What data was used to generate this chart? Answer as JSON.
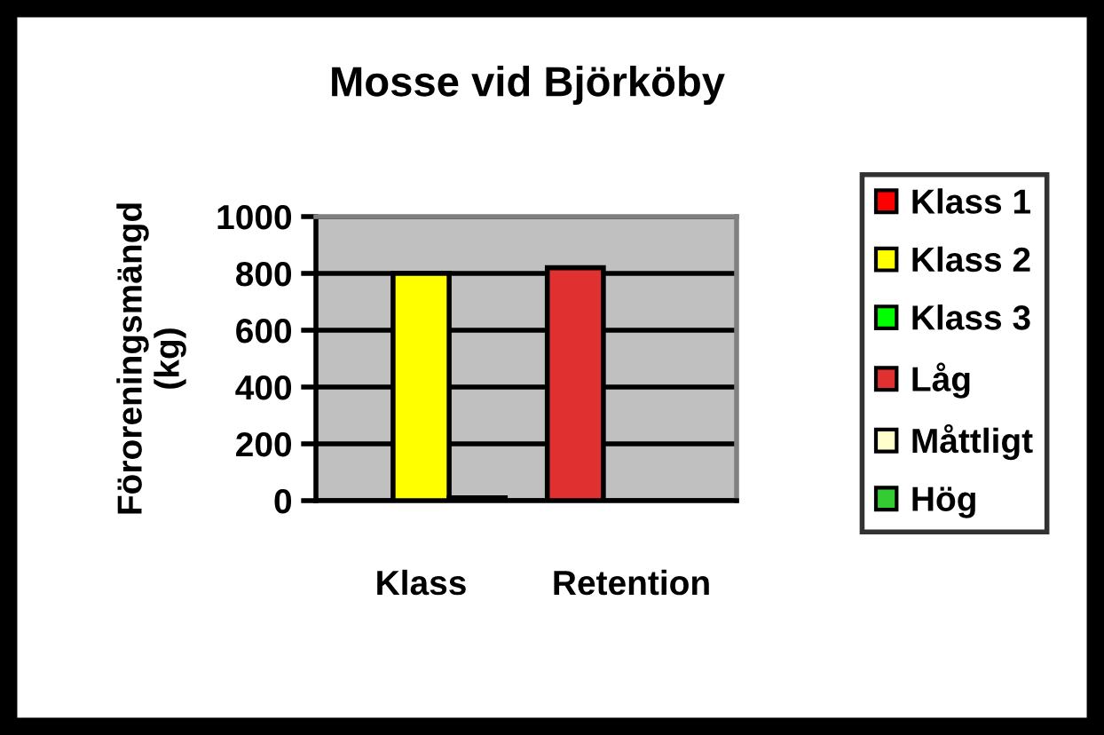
{
  "chart_data": {
    "type": "bar",
    "title": "Mosse vid Björköby",
    "ylabel": "Föroreningsmängd\n(kg)",
    "categories": [
      "Klass",
      "Retention"
    ],
    "series": [
      {
        "name": "Klass 1",
        "color": "#ff0000",
        "values": [
          null,
          null
        ]
      },
      {
        "name": "Klass 2",
        "color": "#ffff00",
        "values": [
          800,
          null
        ]
      },
      {
        "name": "Klass 3",
        "color": "#00ff00",
        "values": [
          10,
          null
        ]
      },
      {
        "name": "Låg",
        "color": "#e03030",
        "values": [
          null,
          820
        ]
      },
      {
        "name": "Måttligt",
        "color": "#ffffcc",
        "values": [
          null,
          null
        ]
      },
      {
        "name": "Hög",
        "color": "#33cc33",
        "values": [
          null,
          null
        ]
      }
    ],
    "ylim": [
      0,
      1000
    ],
    "yticks": [
      0,
      200,
      400,
      600,
      800,
      1000
    ],
    "grid": "y",
    "legend": "right"
  }
}
